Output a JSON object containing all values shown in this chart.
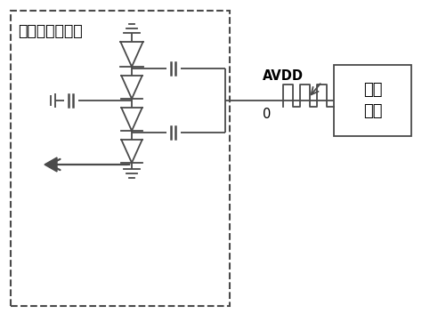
{
  "title": "电荷泵功能电路",
  "bg_color": "#ffffff",
  "line_color": "#4a4a4a",
  "avdd_label": "AVDD",
  "zero_label": "0",
  "driver_label": "驱动\n芯片",
  "fig_w": 4.74,
  "fig_h": 3.62,
  "dpi": 100
}
